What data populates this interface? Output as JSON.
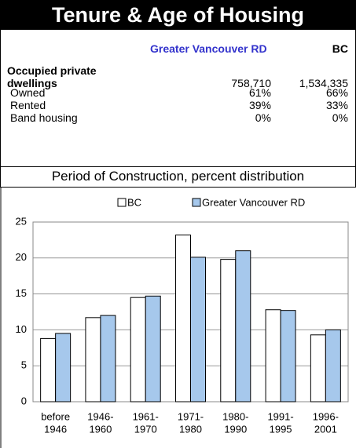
{
  "header": {
    "title": "Tenure & Age of Housing"
  },
  "table": {
    "columns": [
      "Greater Vancouver RD",
      "BC"
    ],
    "rows": [
      [
        "Occupied private dwellings",
        "758,710",
        "1,534,335"
      ],
      [
        "Owned",
        "61%",
        "66%"
      ],
      [
        "Rented",
        "39%",
        "33%"
      ],
      [
        "Band housing",
        "0%",
        "0%"
      ]
    ]
  },
  "chart_data": {
    "type": "bar",
    "title": "Period of Construction, percent distribution",
    "categories": [
      [
        "before",
        "1946"
      ],
      [
        "1946-",
        "1960"
      ],
      [
        "1961-",
        "1970"
      ],
      [
        "1971-",
        "1980"
      ],
      [
        "1980-",
        "1990"
      ],
      [
        "1991-",
        "1995"
      ],
      [
        "1996-",
        "2001"
      ]
    ],
    "series": [
      {
        "name": "BC",
        "color": "#ffffff",
        "values": [
          8.8,
          11.7,
          14.5,
          23.2,
          19.8,
          12.8,
          9.3
        ]
      },
      {
        "name": "Greater Vancouver RD",
        "color": "#a6c8ec",
        "values": [
          9.5,
          12.0,
          14.7,
          20.1,
          21.0,
          12.7,
          10.0
        ]
      }
    ],
    "ylim": [
      0,
      25
    ],
    "yticks": [
      0,
      5,
      10,
      15,
      20,
      25
    ],
    "grid": true,
    "legend": "top"
  }
}
